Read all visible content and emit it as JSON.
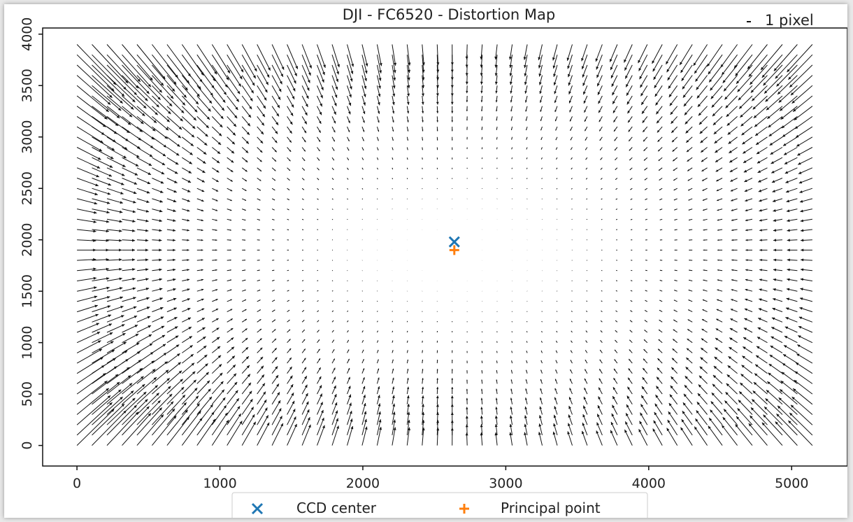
{
  "chart_data": {
    "type": "quiver",
    "title": "DJI - FC6520 - Distortion Map",
    "xlabel": "",
    "ylabel": "",
    "xlim": [
      -240,
      5390
    ],
    "ylim": [
      -200,
      4060
    ],
    "x_ticks": [
      0,
      1000,
      2000,
      3000,
      4000,
      5000
    ],
    "y_ticks": [
      0,
      500,
      1000,
      1500,
      2000,
      2500,
      3000,
      3500,
      4000
    ],
    "grid": false,
    "quiver": {
      "x_start": 0,
      "x_step": 105,
      "x_count": 50,
      "y_start": 0,
      "y_step": 100,
      "y_count": 40,
      "field_note_center": [
        2640,
        1900
      ]
    },
    "quiver_key": {
      "label": "1 pixel",
      "position": "top-right"
    },
    "markers": [
      {
        "name": "CCD center",
        "x": 2640,
        "y": 1980,
        "marker": "x",
        "color": "#1f77b4"
      },
      {
        "name": "Principal point",
        "x": 2640,
        "y": 1900,
        "marker": "+",
        "color": "#ff7f0e"
      }
    ],
    "legend": {
      "placement": "bottom-center",
      "entries": [
        "CCD center",
        "Principal point"
      ]
    }
  }
}
